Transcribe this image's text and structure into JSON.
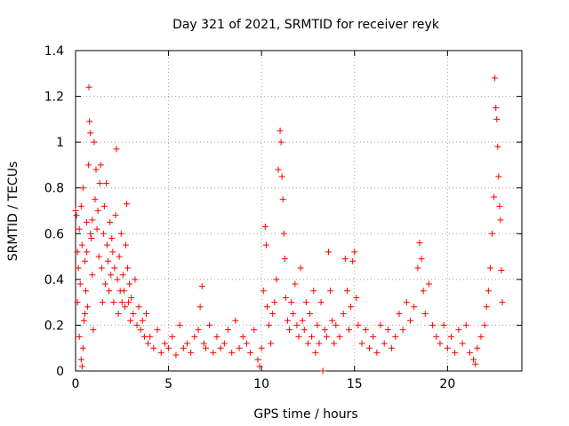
{
  "chart_data": {
    "type": "scatter",
    "title": "Day 321 of 2021, SRMTID for receiver reyk",
    "xlabel": "GPS time / hours",
    "ylabel": "SRMTID / TECUs",
    "xlim": [
      0,
      24
    ],
    "ylim": [
      0,
      1.4
    ],
    "x_ticks": [
      0,
      5,
      10,
      15,
      20
    ],
    "x_tick_labels": [
      "0",
      "5",
      "10",
      "15",
      "20"
    ],
    "y_ticks": [
      0,
      0.2,
      0.4,
      0.6,
      0.8,
      1,
      1.2,
      1.4
    ],
    "y_tick_labels": [
      "0",
      "0.2",
      "0.4",
      "0.6",
      "0.8",
      "1",
      "1.2",
      "1.4"
    ],
    "grid": true,
    "marker": "+",
    "color": "#ff0000",
    "series": [
      {
        "name": "SRMTID",
        "points": [
          [
            0.05,
            0.68
          ],
          [
            0.1,
            0.52
          ],
          [
            0.15,
            0.45
          ],
          [
            0.2,
            0.62
          ],
          [
            0.25,
            0.38
          ],
          [
            0.3,
            0.72
          ],
          [
            0.35,
            0.55
          ],
          [
            0.4,
            0.8
          ],
          [
            0.45,
            0.22
          ],
          [
            0.5,
            0.48
          ],
          [
            0.55,
            0.35
          ],
          [
            0.6,
            0.65
          ],
          [
            0.65,
            0.28
          ],
          [
            0.7,
            0.9
          ],
          [
            0.72,
            1.24
          ],
          [
            0.75,
            1.09
          ],
          [
            0.8,
            1.04
          ],
          [
            0.85,
            0.58
          ],
          [
            0.9,
            0.42
          ],
          [
            0.95,
            0.18
          ],
          [
            1.0,
            1.0
          ],
          [
            1.05,
            0.75
          ],
          [
            1.1,
            0.88
          ],
          [
            1.15,
            0.62
          ],
          [
            1.2,
            0.7
          ],
          [
            1.25,
            0.5
          ],
          [
            1.3,
            0.82
          ],
          [
            1.35,
            0.9
          ],
          [
            1.4,
            0.45
          ],
          [
            1.45,
            0.3
          ],
          [
            1.5,
            0.6
          ],
          [
            1.55,
            0.72
          ],
          [
            1.6,
            0.38
          ],
          [
            1.65,
            0.82
          ],
          [
            1.7,
            0.55
          ],
          [
            1.75,
            0.48
          ],
          [
            1.8,
            0.35
          ],
          [
            1.85,
            0.65
          ],
          [
            1.9,
            0.42
          ],
          [
            1.95,
            0.58
          ],
          [
            2.0,
            0.52
          ],
          [
            2.05,
            0.3
          ],
          [
            2.1,
            0.45
          ],
          [
            2.15,
            0.68
          ],
          [
            2.2,
            0.97
          ],
          [
            2.25,
            0.4
          ],
          [
            2.3,
            0.25
          ],
          [
            2.35,
            0.5
          ],
          [
            2.4,
            0.35
          ],
          [
            2.45,
            0.6
          ],
          [
            2.5,
            0.3
          ],
          [
            2.55,
            0.42
          ],
          [
            2.6,
            0.35
          ],
          [
            2.65,
            0.28
          ],
          [
            2.7,
            0.55
          ],
          [
            2.75,
            0.73
          ],
          [
            2.8,
            0.45
          ],
          [
            2.85,
            0.3
          ],
          [
            2.9,
            0.38
          ],
          [
            2.95,
            0.22
          ],
          [
            3.0,
            0.32
          ],
          [
            3.1,
            0.25
          ],
          [
            3.2,
            0.4
          ],
          [
            3.3,
            0.2
          ],
          [
            3.4,
            0.28
          ],
          [
            3.5,
            0.18
          ],
          [
            3.6,
            0.22
          ],
          [
            3.7,
            0.15
          ],
          [
            3.8,
            0.25
          ],
          [
            3.9,
            0.12
          ],
          [
            0.0,
            0.7
          ],
          [
            0.1,
            0.3
          ],
          [
            0.2,
            0.15
          ],
          [
            0.3,
            0.05
          ],
          [
            0.35,
            0.02
          ],
          [
            0.4,
            0.1
          ],
          [
            0.5,
            0.25
          ],
          [
            0.6,
            0.52
          ],
          [
            0.8,
            0.6
          ],
          [
            0.9,
            0.66
          ],
          [
            4.0,
            0.15
          ],
          [
            4.2,
            0.1
          ],
          [
            4.4,
            0.18
          ],
          [
            4.6,
            0.08
          ],
          [
            4.8,
            0.12
          ],
          [
            5.0,
            0.1
          ],
          [
            5.2,
            0.15
          ],
          [
            5.4,
            0.07
          ],
          [
            5.6,
            0.2
          ],
          [
            5.8,
            0.1
          ],
          [
            6.0,
            0.12
          ],
          [
            6.2,
            0.08
          ],
          [
            6.4,
            0.15
          ],
          [
            6.6,
            0.18
          ],
          [
            6.7,
            0.28
          ],
          [
            6.8,
            0.37
          ],
          [
            6.9,
            0.12
          ],
          [
            7.0,
            0.1
          ],
          [
            7.2,
            0.2
          ],
          [
            7.4,
            0.08
          ],
          [
            7.6,
            0.15
          ],
          [
            7.8,
            0.1
          ],
          [
            8.0,
            0.12
          ],
          [
            8.2,
            0.18
          ],
          [
            8.4,
            0.08
          ],
          [
            8.6,
            0.22
          ],
          [
            8.8,
            0.1
          ],
          [
            9.0,
            0.15
          ],
          [
            9.2,
            0.12
          ],
          [
            9.4,
            0.08
          ],
          [
            9.6,
            0.18
          ],
          [
            9.8,
            0.05
          ],
          [
            9.9,
            0.02
          ],
          [
            10.0,
            0.1
          ],
          [
            10.1,
            0.35
          ],
          [
            10.2,
            0.63
          ],
          [
            10.25,
            0.55
          ],
          [
            10.3,
            0.28
          ],
          [
            10.4,
            0.2
          ],
          [
            10.5,
            0.12
          ],
          [
            10.6,
            0.25
          ],
          [
            10.7,
            0.3
          ],
          [
            10.8,
            0.4
          ],
          [
            10.9,
            0.88
          ],
          [
            11.0,
            1.05
          ],
          [
            11.05,
            1.0
          ],
          [
            11.1,
            0.85
          ],
          [
            11.15,
            0.75
          ],
          [
            11.2,
            0.6
          ],
          [
            11.25,
            0.49
          ],
          [
            11.3,
            0.32
          ],
          [
            11.4,
            0.22
          ],
          [
            11.5,
            0.18
          ],
          [
            11.6,
            0.3
          ],
          [
            11.7,
            0.25
          ],
          [
            11.8,
            0.38
          ],
          [
            11.9,
            0.2
          ],
          [
            12.0,
            0.15
          ],
          [
            12.1,
            0.45
          ],
          [
            12.2,
            0.22
          ],
          [
            12.3,
            0.18
          ],
          [
            12.4,
            0.3
          ],
          [
            12.5,
            0.12
          ],
          [
            12.6,
            0.25
          ],
          [
            12.7,
            0.15
          ],
          [
            12.8,
            0.35
          ],
          [
            12.9,
            0.08
          ],
          [
            13.0,
            0.2
          ],
          [
            13.1,
            0.12
          ],
          [
            13.2,
            0.3
          ],
          [
            13.3,
            0.0
          ],
          [
            13.4,
            0.18
          ],
          [
            13.5,
            0.15
          ],
          [
            13.6,
            0.52
          ],
          [
            13.7,
            0.35
          ],
          [
            13.8,
            0.22
          ],
          [
            13.9,
            0.12
          ],
          [
            14.0,
            0.2
          ],
          [
            14.2,
            0.15
          ],
          [
            14.4,
            0.25
          ],
          [
            14.5,
            0.49
          ],
          [
            14.6,
            0.35
          ],
          [
            14.7,
            0.18
          ],
          [
            14.8,
            0.28
          ],
          [
            14.9,
            0.48
          ],
          [
            15.0,
            0.52
          ],
          [
            15.1,
            0.32
          ],
          [
            15.2,
            0.2
          ],
          [
            15.4,
            0.12
          ],
          [
            15.6,
            0.18
          ],
          [
            15.8,
            0.1
          ],
          [
            16.0,
            0.15
          ],
          [
            16.2,
            0.08
          ],
          [
            16.4,
            0.2
          ],
          [
            16.6,
            0.12
          ],
          [
            16.8,
            0.18
          ],
          [
            17.0,
            0.1
          ],
          [
            17.2,
            0.15
          ],
          [
            17.4,
            0.25
          ],
          [
            17.6,
            0.18
          ],
          [
            17.8,
            0.3
          ],
          [
            18.0,
            0.22
          ],
          [
            18.2,
            0.28
          ],
          [
            18.4,
            0.45
          ],
          [
            18.5,
            0.56
          ],
          [
            18.6,
            0.49
          ],
          [
            18.7,
            0.35
          ],
          [
            18.8,
            0.25
          ],
          [
            19.0,
            0.38
          ],
          [
            19.2,
            0.2
          ],
          [
            19.4,
            0.15
          ],
          [
            19.6,
            0.12
          ],
          [
            19.8,
            0.2
          ],
          [
            20.0,
            0.1
          ],
          [
            20.2,
            0.15
          ],
          [
            20.4,
            0.08
          ],
          [
            20.6,
            0.18
          ],
          [
            20.8,
            0.12
          ],
          [
            21.0,
            0.2
          ],
          [
            21.2,
            0.08
          ],
          [
            21.4,
            0.05
          ],
          [
            21.5,
            0.03
          ],
          [
            21.6,
            0.1
          ],
          [
            21.8,
            0.15
          ],
          [
            22.0,
            0.2
          ],
          [
            22.1,
            0.28
          ],
          [
            22.2,
            0.35
          ],
          [
            22.3,
            0.45
          ],
          [
            22.4,
            0.6
          ],
          [
            22.5,
            0.76
          ],
          [
            22.55,
            1.28
          ],
          [
            22.6,
            1.15
          ],
          [
            22.65,
            1.1
          ],
          [
            22.7,
            0.98
          ],
          [
            22.75,
            0.85
          ],
          [
            22.8,
            0.72
          ],
          [
            22.85,
            0.66
          ],
          [
            22.9,
            0.44
          ],
          [
            22.95,
            0.3
          ]
        ]
      }
    ]
  }
}
